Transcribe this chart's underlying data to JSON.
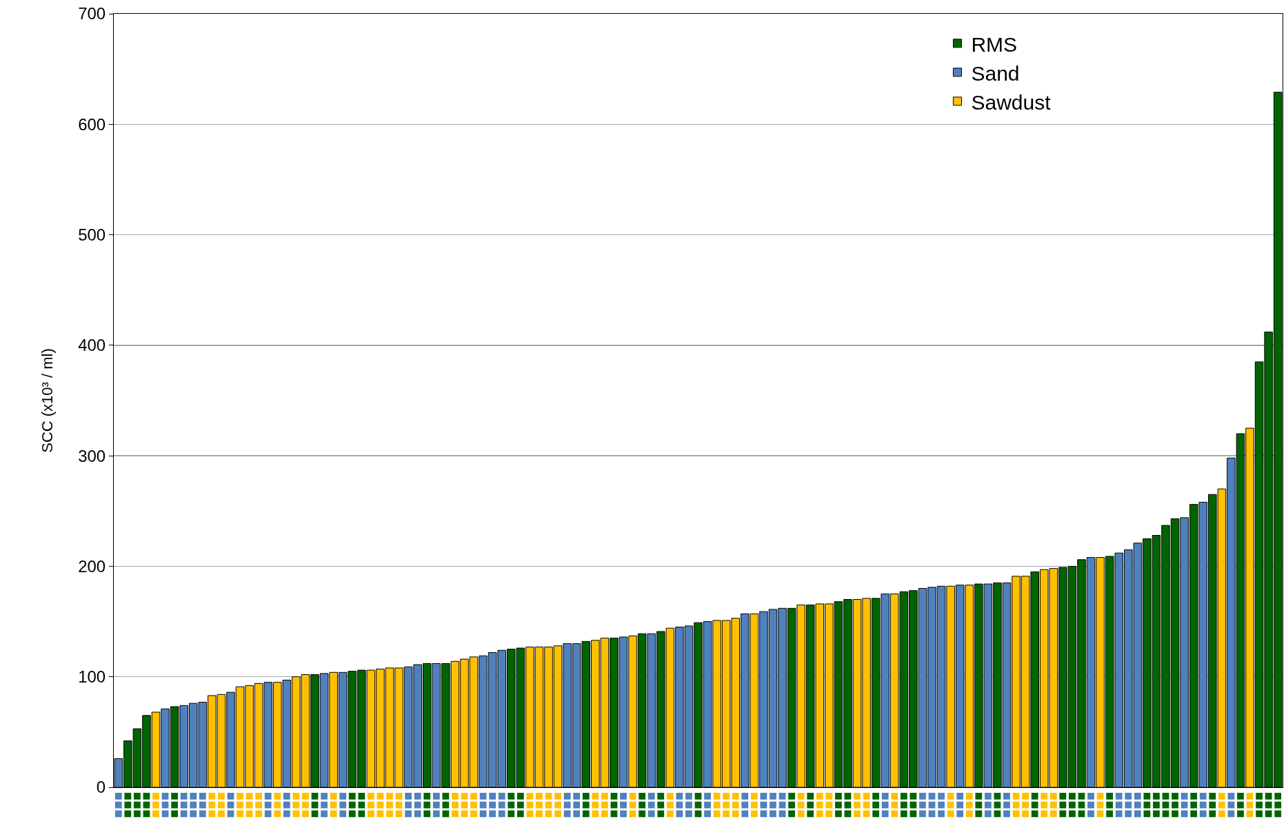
{
  "chart_data": {
    "type": "bar",
    "ylabel": "SCC (x10³ / ml)",
    "categories": [
      null,
      null,
      null,
      null,
      null,
      null,
      null,
      null,
      null,
      null,
      null,
      null,
      null,
      null,
      null,
      null,
      null,
      null,
      null,
      null,
      null,
      null,
      null,
      null,
      null,
      null,
      null,
      null,
      null,
      null,
      null,
      null,
      null,
      null,
      null,
      null,
      null,
      null,
      null,
      null,
      null,
      null,
      null,
      null,
      null,
      null,
      null,
      null,
      null,
      null,
      null,
      null,
      null,
      null,
      null,
      null,
      null,
      null,
      null,
      null,
      null,
      null,
      null,
      null,
      null,
      null,
      null,
      null,
      null,
      null,
      null,
      null,
      null,
      null,
      null,
      null,
      null,
      null,
      null,
      null,
      null,
      null,
      null,
      null,
      null,
      null,
      null,
      null,
      null,
      null,
      null,
      null,
      null,
      null,
      null,
      null,
      null,
      null,
      null,
      null,
      null,
      null,
      null,
      null,
      null,
      null,
      null,
      null,
      null,
      null,
      null,
      null,
      null,
      null,
      null,
      null,
      null,
      null,
      null,
      null,
      null,
      null,
      null,
      null,
      null
    ],
    "series": [
      {
        "name": "RMS",
        "color": "#006400",
        "values": [
          null,
          42,
          53,
          65,
          null,
          null,
          73,
          null,
          null,
          null,
          null,
          null,
          null,
          null,
          null,
          null,
          null,
          null,
          null,
          null,
          null,
          102,
          null,
          null,
          null,
          105,
          106,
          null,
          null,
          null,
          null,
          null,
          null,
          112,
          null,
          112,
          null,
          null,
          null,
          null,
          null,
          null,
          125,
          126,
          null,
          null,
          null,
          null,
          null,
          null,
          132,
          null,
          null,
          135,
          null,
          null,
          139,
          null,
          141,
          null,
          null,
          null,
          149,
          null,
          null,
          null,
          null,
          null,
          null,
          null,
          null,
          null,
          162,
          null,
          165,
          null,
          null,
          168,
          170,
          null,
          null,
          171,
          null,
          null,
          177,
          178,
          null,
          null,
          null,
          null,
          null,
          null,
          184,
          null,
          185,
          null,
          null,
          null,
          195,
          null,
          null,
          199,
          200,
          206,
          null,
          null,
          209,
          null,
          null,
          null,
          225,
          228,
          237,
          243,
          null,
          256,
          null,
          265,
          null,
          null,
          320,
          null,
          385,
          412,
          629
        ]
      },
      {
        "name": "Sand",
        "color": "#4f81bd",
        "values": [
          26,
          null,
          null,
          null,
          null,
          71,
          null,
          74,
          76,
          77,
          null,
          null,
          86,
          null,
          null,
          null,
          95,
          null,
          97,
          null,
          null,
          null,
          103,
          null,
          104,
          null,
          null,
          null,
          null,
          null,
          null,
          109,
          111,
          null,
          112,
          null,
          null,
          null,
          null,
          119,
          122,
          124,
          null,
          null,
          null,
          null,
          null,
          null,
          130,
          130,
          null,
          null,
          null,
          null,
          136,
          null,
          null,
          139,
          null,
          null,
          145,
          146,
          null,
          150,
          null,
          null,
          null,
          157,
          null,
          159,
          161,
          162,
          null,
          null,
          null,
          null,
          null,
          null,
          null,
          null,
          null,
          null,
          175,
          null,
          null,
          null,
          180,
          181,
          182,
          null,
          183,
          null,
          null,
          184,
          null,
          185,
          null,
          null,
          null,
          null,
          null,
          null,
          null,
          null,
          208,
          null,
          null,
          212,
          215,
          221,
          null,
          null,
          null,
          null,
          244,
          null,
          258,
          null,
          null,
          298,
          null,
          null,
          null,
          null,
          null
        ]
      },
      {
        "name": "Sawdust",
        "color": "#ffc000",
        "values": [
          null,
          null,
          null,
          null,
          68,
          null,
          null,
          null,
          null,
          null,
          83,
          84,
          null,
          91,
          92,
          94,
          null,
          95,
          null,
          100,
          102,
          null,
          null,
          104,
          null,
          null,
          null,
          106,
          107,
          108,
          108,
          null,
          null,
          null,
          null,
          null,
          114,
          116,
          118,
          null,
          null,
          null,
          null,
          null,
          127,
          127,
          127,
          128,
          null,
          null,
          null,
          133,
          135,
          null,
          null,
          137,
          null,
          null,
          null,
          144,
          null,
          null,
          null,
          null,
          151,
          151,
          153,
          null,
          157,
          null,
          null,
          null,
          null,
          165,
          null,
          166,
          166,
          null,
          null,
          170,
          171,
          null,
          null,
          175,
          null,
          null,
          null,
          null,
          null,
          182,
          null,
          183,
          null,
          null,
          null,
          null,
          191,
          191,
          null,
          197,
          198,
          null,
          null,
          null,
          null,
          208,
          null,
          null,
          null,
          null,
          null,
          null,
          null,
          null,
          null,
          null,
          null,
          null,
          270,
          null,
          null,
          325,
          null,
          null,
          null
        ]
      }
    ],
    "ylim": [
      0,
      700
    ],
    "yticks": [
      0,
      100,
      200,
      300,
      400,
      500,
      600,
      700
    ],
    "grid": "y",
    "legend": "top right"
  }
}
